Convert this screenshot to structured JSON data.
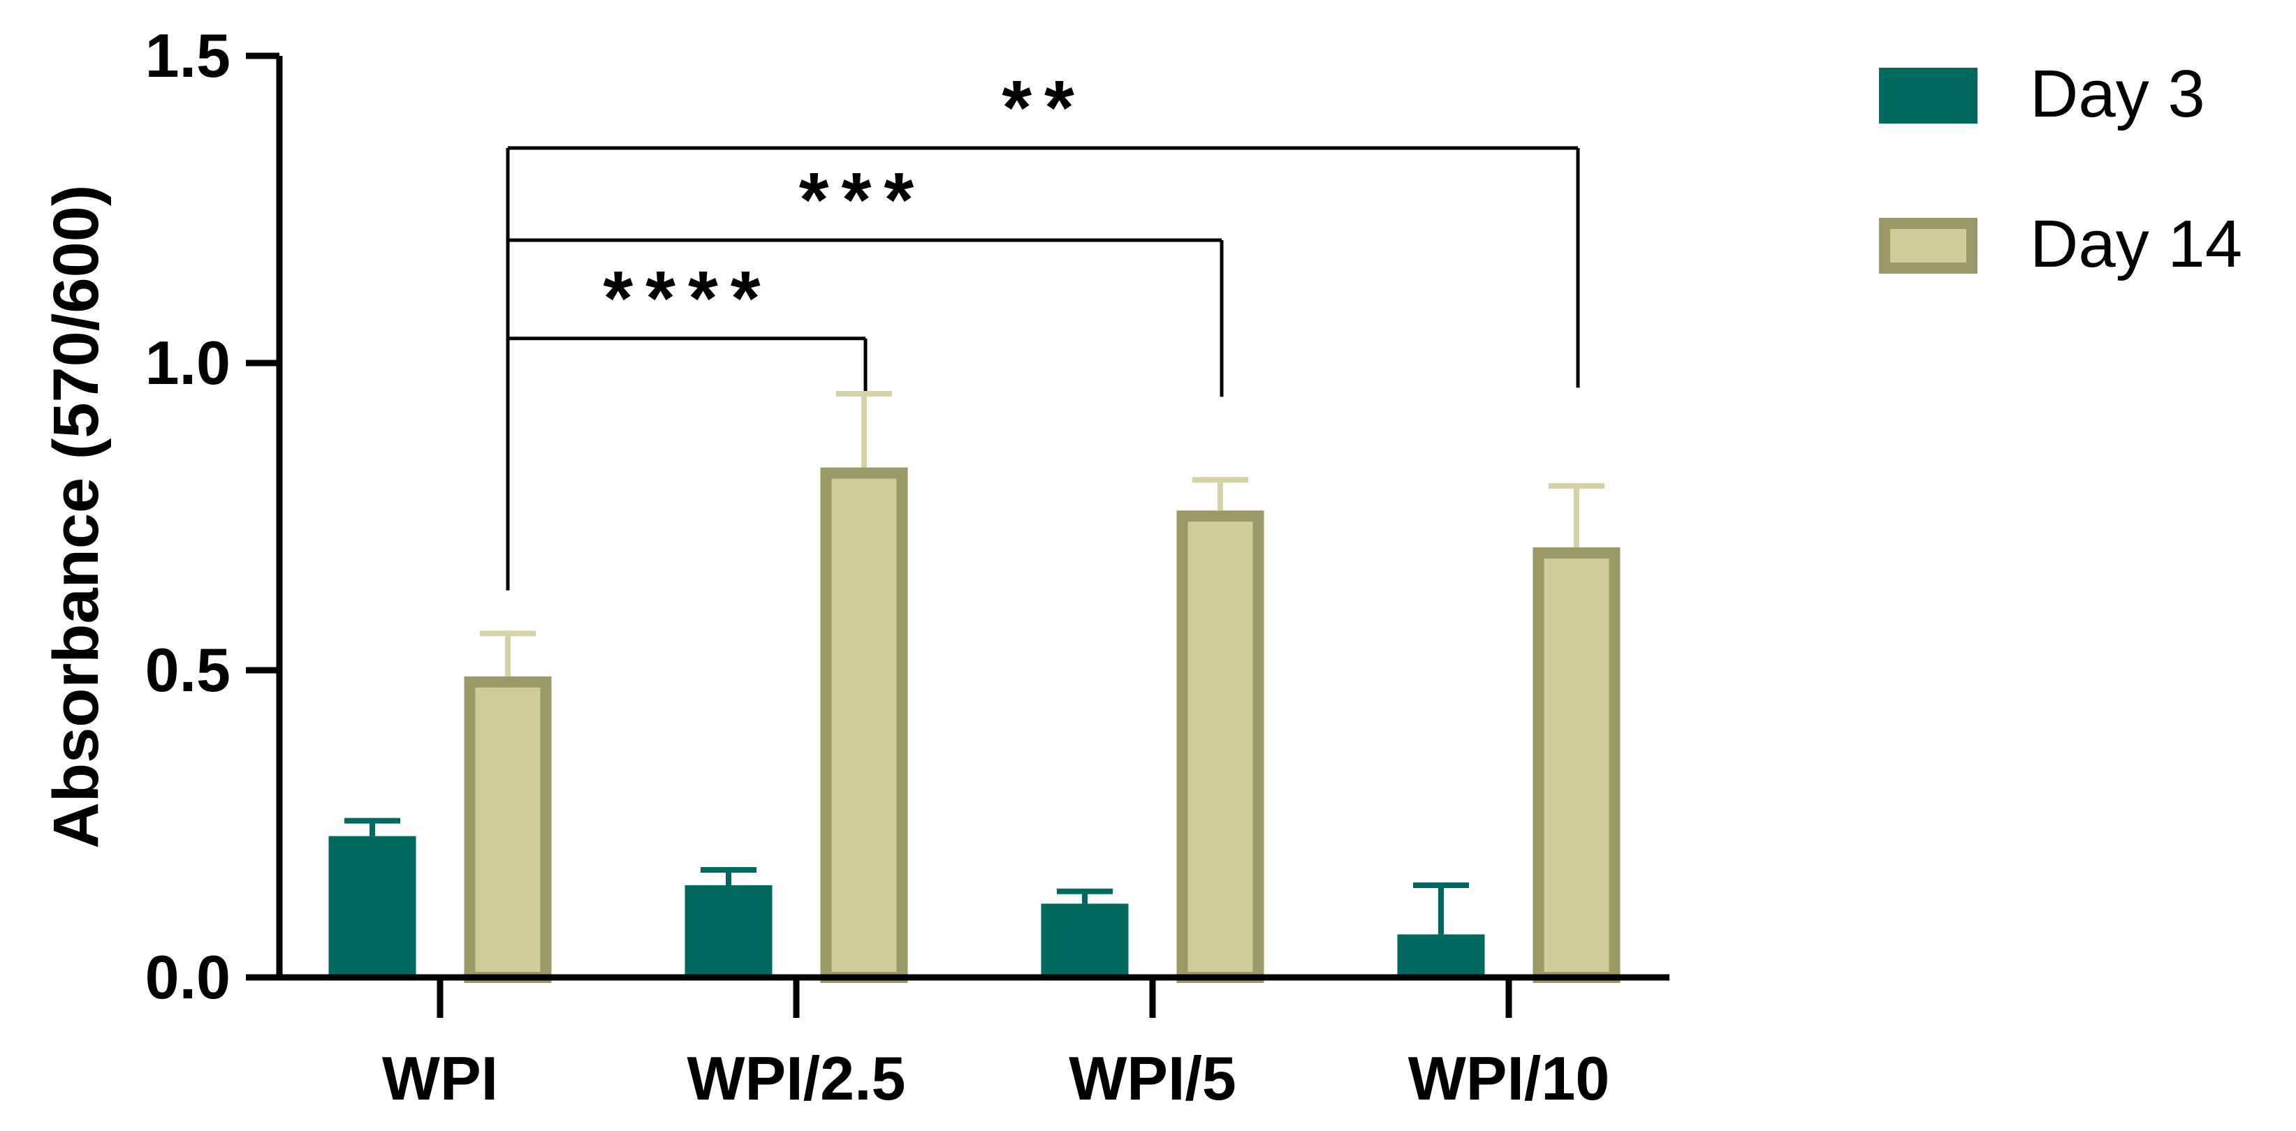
{
  "chart_data": {
    "type": "bar",
    "title": "",
    "xlabel": "",
    "ylabel": "Absorbance (570/600)",
    "ylim": [
      0,
      1.5
    ],
    "yticks": [
      "0.0",
      "0.5",
      "1.0",
      "1.5"
    ],
    "categories": [
      "WPI",
      "WPI/2.5",
      "WPI/5",
      "WPI/10"
    ],
    "series": [
      {
        "name": "Day 3",
        "values": [
          0.23,
          0.15,
          0.12,
          0.07
        ],
        "errors": [
          0.025,
          0.025,
          0.02,
          0.08
        ],
        "color": "#00695f"
      },
      {
        "name": "Day 14",
        "values": [
          0.49,
          0.83,
          0.76,
          0.7
        ],
        "errors": [
          0.07,
          0.12,
          0.05,
          0.1
        ],
        "color": "#cfcc99",
        "edge_color": "#9b9a66"
      }
    ],
    "annotations": [
      {
        "label": "****",
        "from": "WPI",
        "to": "WPI/2.5"
      },
      {
        "label": "***",
        "from": "WPI",
        "to": "WPI/5"
      },
      {
        "label": "**",
        "from": "WPI",
        "to": "WPI/10"
      }
    ],
    "legend": "top-right",
    "grid": false
  }
}
